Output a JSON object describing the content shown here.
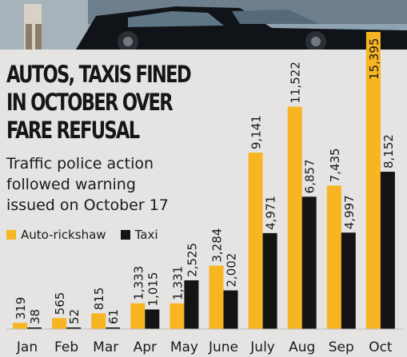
{
  "headline": [
    "AUTOS, TAXIS FINED",
    "IN OCTOBER OVER",
    "FARE REFUSAL"
  ],
  "subtitle": [
    "Traffic police action",
    "followed warning",
    "issued on October 17"
  ],
  "colors": {
    "auto": "#f7b522",
    "taxi": "#141414",
    "background": "#e6e4e2"
  },
  "chart_data": {
    "type": "bar",
    "categories": [
      "Jan",
      "Feb",
      "Mar",
      "Apr",
      "May",
      "June",
      "July",
      "Aug",
      "Sep",
      "Oct"
    ],
    "series": [
      {
        "name": "Auto-rickshaw",
        "values": [
          319,
          565,
          815,
          1333,
          1331,
          3284,
          9141,
          11522,
          7435,
          15395
        ]
      },
      {
        "name": "Taxi",
        "values": [
          38,
          52,
          61,
          1015,
          2525,
          2002,
          4971,
          6857,
          4997,
          8152
        ]
      }
    ],
    "value_labels": {
      "Auto-rickshaw": [
        "319",
        "565",
        "815",
        "1,333",
        "1,331",
        "3,284",
        "9,141",
        "11,522",
        "7,435",
        "15,395"
      ],
      "Taxi": [
        "38",
        "52",
        "61",
        "1,015",
        "2,525",
        "2,002",
        "4,971",
        "6,857",
        "4,997",
        "8,152"
      ]
    },
    "title": "",
    "xlabel": "",
    "ylabel": "",
    "ylim": [
      0,
      15395
    ],
    "legend": "left"
  }
}
